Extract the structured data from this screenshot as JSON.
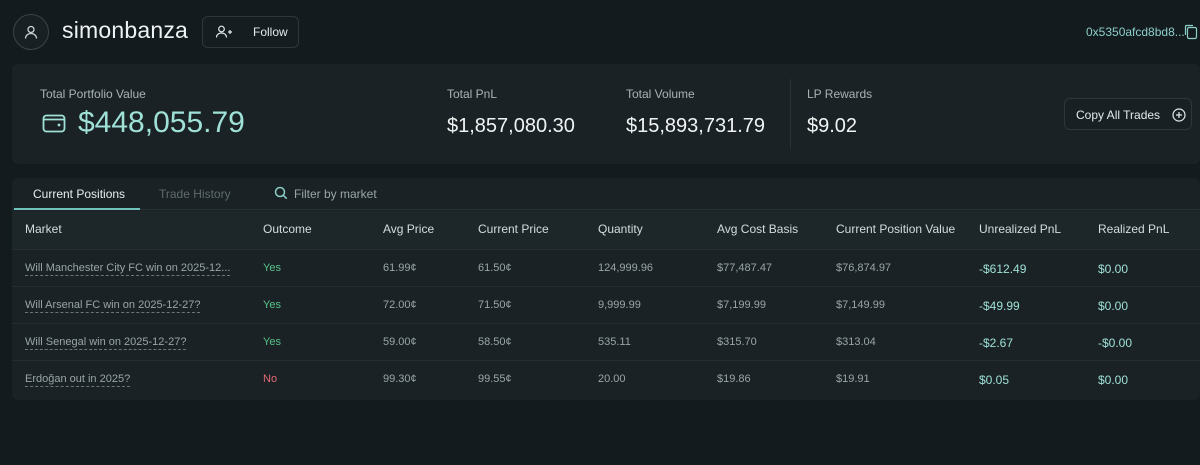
{
  "profile": {
    "username": "simonbanza",
    "follow_label": "Follow",
    "address": "0x5350afcd8bd8..."
  },
  "stats": {
    "portfolio_label": "Total Portfolio Value",
    "portfolio_value": "$448,055.79",
    "pnl_label": "Total PnL",
    "pnl_value": "$1,857,080.30",
    "volume_label": "Total Volume",
    "volume_value": "$15,893,731.79",
    "lp_label": "LP Rewards",
    "lp_value": "$9.02",
    "copy_trades_label": "Copy All Trades"
  },
  "tabs": {
    "current": "Current Positions",
    "history": "Trade History"
  },
  "filter": {
    "placeholder": "Filter by market"
  },
  "columns": {
    "market": "Market",
    "outcome": "Outcome",
    "avg_price": "Avg Price",
    "current_price": "Current Price",
    "quantity": "Quantity",
    "avg_cost": "Avg Cost Basis",
    "position_value": "Current Position Value",
    "unrealized": "Unrealized PnL",
    "realized": "Realized PnL"
  },
  "rows": [
    {
      "market": "Will Manchester City FC win on 2025-12...",
      "outcome": "Yes",
      "avg_price": "61.99¢",
      "current_price": "61.50¢",
      "quantity": "124,999.96",
      "avg_cost": "$77,487.47",
      "position_value": "$76,874.97",
      "unrealized": "-$612.49",
      "realized": "$0.00"
    },
    {
      "market": "Will Arsenal FC win on 2025-12-27?",
      "outcome": "Yes",
      "avg_price": "72.00¢",
      "current_price": "71.50¢",
      "quantity": "9,999.99",
      "avg_cost": "$7,199.99",
      "position_value": "$7,149.99",
      "unrealized": "-$49.99",
      "realized": "$0.00"
    },
    {
      "market": "Will Senegal win on 2025-12-27?",
      "outcome": "Yes",
      "avg_price": "59.00¢",
      "current_price": "58.50¢",
      "quantity": "535.11",
      "avg_cost": "$315.70",
      "position_value": "$313.04",
      "unrealized": "-$2.67",
      "realized": "-$0.00"
    },
    {
      "market": "Erdoğan out in 2025?",
      "outcome": "No",
      "avg_price": "99.30¢",
      "current_price": "99.55¢",
      "quantity": "20.00",
      "avg_cost": "$19.86",
      "position_value": "$19.91",
      "unrealized": "$0.05",
      "realized": "$0.00"
    }
  ],
  "colors": {
    "accent": "#9fe0d7",
    "yes": "#5ac28a",
    "no": "#e06a72",
    "background": "#141b1e",
    "panel": "#1a2225"
  }
}
